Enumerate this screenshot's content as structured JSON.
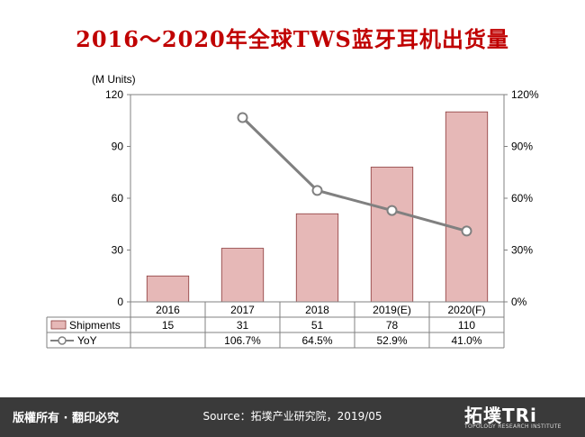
{
  "title": "2016～2020年全球TWS蓝牙耳机出货量",
  "footer": {
    "rights": "版權所有 · 翻印必究",
    "source": "Source：拓墣产业研究院，2019/05",
    "logo_text": "拓墣TRi",
    "logo_tagline": "TOPOLOGY RESEARCH INSTITUTE"
  },
  "colors": {
    "title": "#c00000",
    "bar_fill": "#e6b8b7",
    "bar_stroke": "#8b3a3a",
    "line": "#808080",
    "footer_bg": "#3a3a3a"
  },
  "chart_data": {
    "type": "bar",
    "categories": [
      "2016",
      "2017",
      "2018",
      "2019(E)",
      "2020(F)"
    ],
    "series": [
      {
        "name": "Shipments",
        "type": "bar",
        "axis": "left",
        "values": [
          15,
          31,
          51,
          78,
          110
        ],
        "labels": [
          "15",
          "31",
          "51",
          "78",
          "110"
        ]
      },
      {
        "name": "YoY",
        "type": "line",
        "axis": "right",
        "values": [
          null,
          106.7,
          64.5,
          52.9,
          41.0
        ],
        "labels": [
          "",
          "106.7%",
          "64.5%",
          "52.9%",
          "41.0%"
        ]
      }
    ],
    "ylabel": "(M Units)",
    "ylim": [
      0,
      120
    ],
    "yticks": [
      "0",
      "30",
      "60",
      "90",
      "120"
    ],
    "y2lim": [
      0,
      120
    ],
    "y2ticks": [
      "0%",
      "30%",
      "60%",
      "90%",
      "120%"
    ],
    "grid": false,
    "legend": "data-table"
  }
}
